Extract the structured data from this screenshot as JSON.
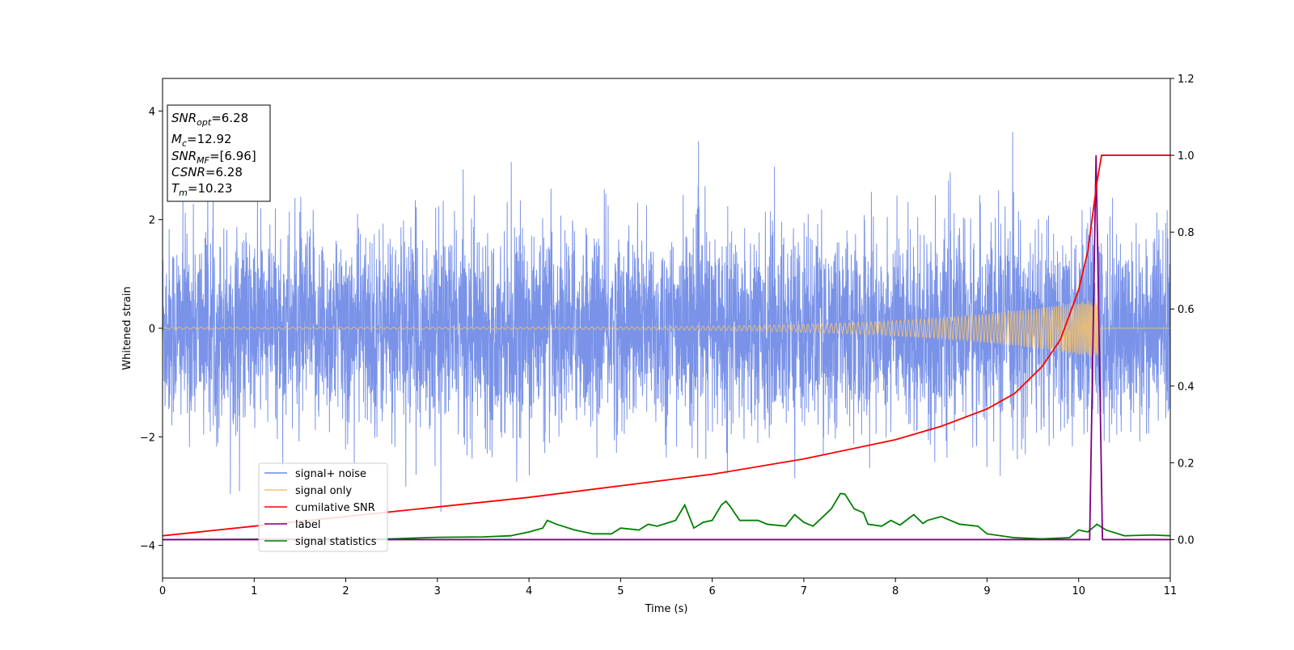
{
  "chart_data": {
    "type": "line",
    "title": "",
    "xlabel": "Time (s)",
    "ylabel": "Whitened strain",
    "xlim": [
      0,
      11
    ],
    "ylim": [
      -4.6,
      4.6
    ],
    "y2lim": [
      -0.1,
      1.2
    ],
    "x_ticks": [
      "0",
      "1",
      "2",
      "3",
      "4",
      "5",
      "6",
      "7",
      "8",
      "9",
      "10",
      "11"
    ],
    "y_ticks": [
      "4",
      "2",
      "0",
      "−2",
      "−4"
    ],
    "y_tick_values": [
      4,
      2,
      0,
      -2,
      -4
    ],
    "y2_ticks": [
      "1.2",
      "1.0",
      "0.8",
      "0.6",
      "0.4",
      "0.2",
      "0.0"
    ],
    "y2_tick_values": [
      1.2,
      1.0,
      0.8,
      0.6,
      0.4,
      0.2,
      0.0
    ],
    "grid": false,
    "legend_position": "lower-left",
    "info_box": {
      "snr_opt": {
        "name": "SNR",
        "sub": "opt",
        "value": "=6.28"
      },
      "mc": {
        "name": "M",
        "sub": "c",
        "value": "=12.92"
      },
      "snr_mf": {
        "name": "SNR",
        "sub": "MF",
        "value": "=[6.96]"
      },
      "csnr": {
        "name": "CSNR",
        "value": "=6.28"
      },
      "tm": {
        "name": "T",
        "sub": "m",
        "value": "=10.23"
      }
    },
    "series": [
      {
        "name": "signal+ noise",
        "axis": "left",
        "color": "#6b87e6",
        "description": "whitened strain noise, std ~0.9, extremes ~±4",
        "noise_std": 0.9,
        "approx_max": 4.1,
        "approx_min": -4.1
      },
      {
        "name": "signal only",
        "axis": "left",
        "color": "#f5c26b",
        "chirp_start_amplitude": 0.02,
        "chirp_peak_amplitude": 0.55,
        "chirp_end_time": 10.23
      },
      {
        "name": "cumilative SNR",
        "axis": "right",
        "color": "#ff0000",
        "x": [
          0,
          1,
          2,
          3,
          4,
          5,
          6,
          7,
          8,
          8.5,
          9,
          9.3,
          9.6,
          9.8,
          10.0,
          10.1,
          10.2,
          10.25,
          11
        ],
        "y": [
          0.01,
          0.035,
          0.06,
          0.085,
          0.11,
          0.14,
          0.17,
          0.21,
          0.26,
          0.295,
          0.34,
          0.38,
          0.45,
          0.52,
          0.65,
          0.75,
          0.93,
          1.0,
          1.0
        ]
      },
      {
        "name": "label",
        "axis": "right",
        "color": "#800080",
        "x": [
          0,
          10.12,
          10.19,
          10.26,
          11
        ],
        "y": [
          0,
          0,
          1.0,
          0,
          0
        ]
      },
      {
        "name": "signal statistics",
        "axis": "right",
        "color": "#008000",
        "x": [
          0,
          1,
          2,
          2.5,
          3,
          3.5,
          3.8,
          4.0,
          4.15,
          4.2,
          4.3,
          4.5,
          4.7,
          4.9,
          5.0,
          5.2,
          5.3,
          5.4,
          5.6,
          5.7,
          5.8,
          5.9,
          6.0,
          6.1,
          6.15,
          6.2,
          6.3,
          6.5,
          6.6,
          6.8,
          6.9,
          7.0,
          7.1,
          7.3,
          7.4,
          7.45,
          7.55,
          7.65,
          7.7,
          7.85,
          7.95,
          8.05,
          8.2,
          8.3,
          8.35,
          8.5,
          8.7,
          8.9,
          9.0,
          9.3,
          9.6,
          9.9,
          10.0,
          10.1,
          10.2,
          10.3,
          10.5,
          10.8,
          11
        ],
        "y": [
          0,
          0.001,
          0.002,
          0.002,
          0.006,
          0.007,
          0.01,
          0.02,
          0.03,
          0.05,
          0.04,
          0.025,
          0.015,
          0.015,
          0.03,
          0.025,
          0.04,
          0.035,
          0.05,
          0.09,
          0.03,
          0.045,
          0.05,
          0.09,
          0.1,
          0.085,
          0.05,
          0.05,
          0.04,
          0.035,
          0.065,
          0.045,
          0.035,
          0.08,
          0.12,
          0.118,
          0.08,
          0.07,
          0.04,
          0.035,
          0.05,
          0.038,
          0.065,
          0.042,
          0.05,
          0.06,
          0.04,
          0.035,
          0.015,
          0.005,
          0.002,
          0.005,
          0.025,
          0.02,
          0.04,
          0.025,
          0.01,
          0.012,
          0.01
        ]
      }
    ]
  }
}
